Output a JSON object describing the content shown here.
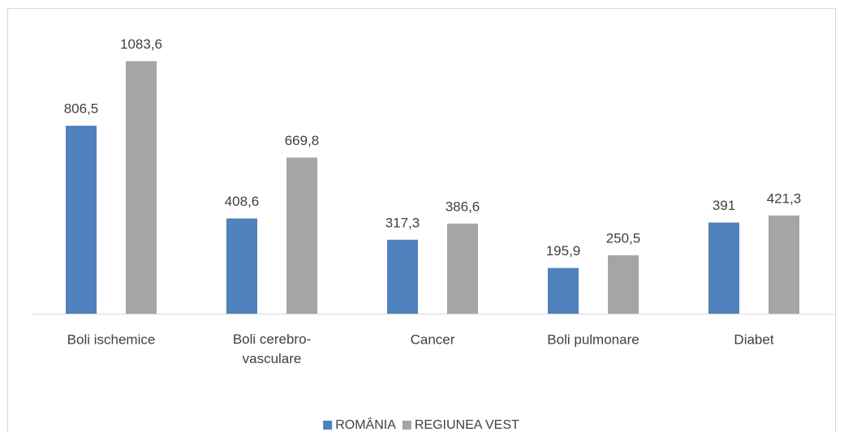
{
  "chart_data": {
    "type": "bar",
    "categories": [
      "Boli ischemice",
      "Boli cerebro-vasculare",
      "Cancer",
      "Boli pulmonare",
      "Diabet"
    ],
    "series": [
      {
        "name": "ROMÂNIA",
        "color": "#4f81bd",
        "values": [
          806.5,
          408.6,
          317.3,
          195.9,
          391
        ],
        "value_labels": [
          "806,5",
          "408,6",
          "317,3",
          "195,9",
          "391"
        ]
      },
      {
        "name": "REGIUNEA VEST",
        "color": "#a5a5a5",
        "values": [
          1083.6,
          669.8,
          386.6,
          250.5,
          421.3
        ],
        "value_labels": [
          "1083,6",
          "669,8",
          "386,6",
          "250,5",
          "421,3"
        ]
      }
    ],
    "ylim": [
      0,
      1200
    ],
    "legend": "bottom"
  }
}
